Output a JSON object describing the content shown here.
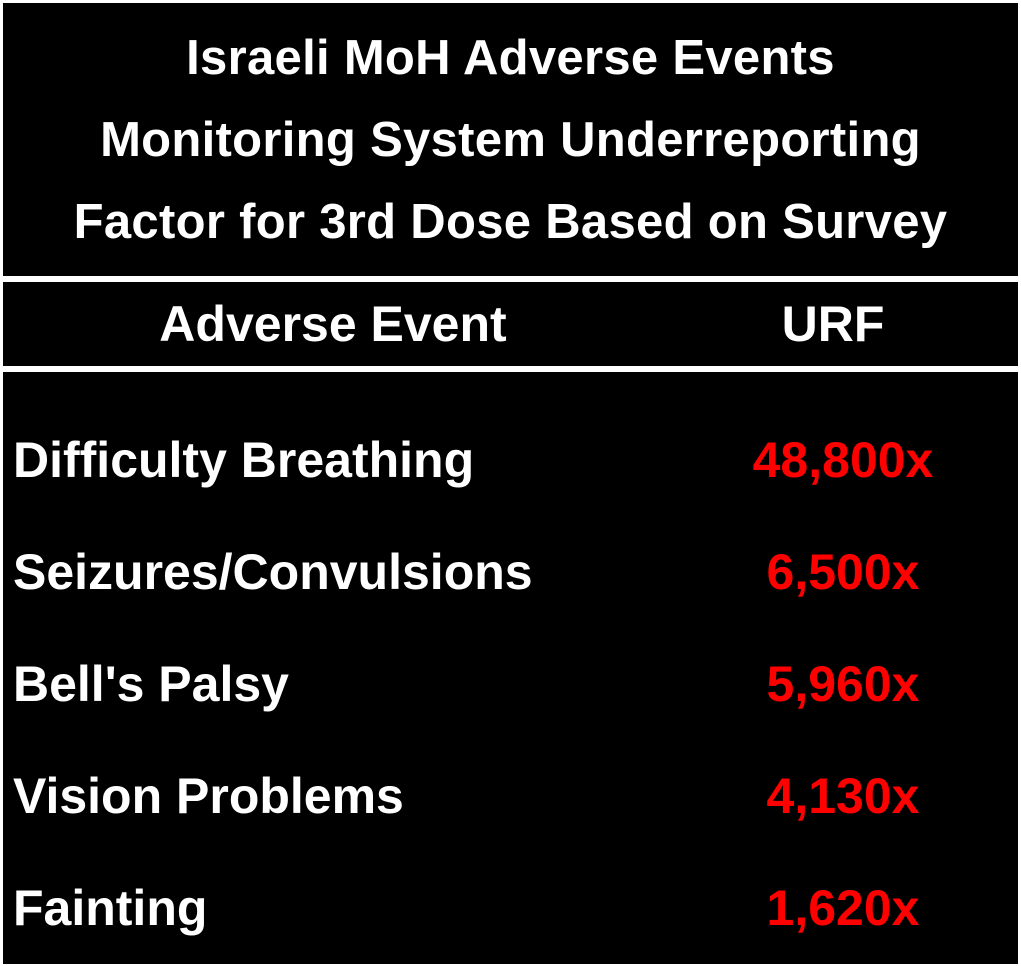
{
  "chart_data": {
    "type": "table",
    "title_lines": [
      "Israeli MoH Adverse Events",
      "Monitoring System Underreporting",
      "Factor for 3rd Dose Based on Survey"
    ],
    "columns": [
      "Adverse Event",
      "URF"
    ],
    "rows": [
      {
        "event": "Difficulty Breathing",
        "urf": "48,800x",
        "value": 48800
      },
      {
        "event": "Seizures/Convulsions",
        "urf": "6,500x",
        "value": 6500
      },
      {
        "event": "Bell's Palsy",
        "urf": "5,960x",
        "value": 5960
      },
      {
        "event": "Vision Problems",
        "urf": "4,130x",
        "value": 4130
      },
      {
        "event": "Fainting",
        "urf": "1,620x",
        "value": 1620
      }
    ],
    "colors": {
      "background": "#000000",
      "text": "#ffffff",
      "value_text": "#ff0000",
      "divider": "#ffffff"
    }
  }
}
